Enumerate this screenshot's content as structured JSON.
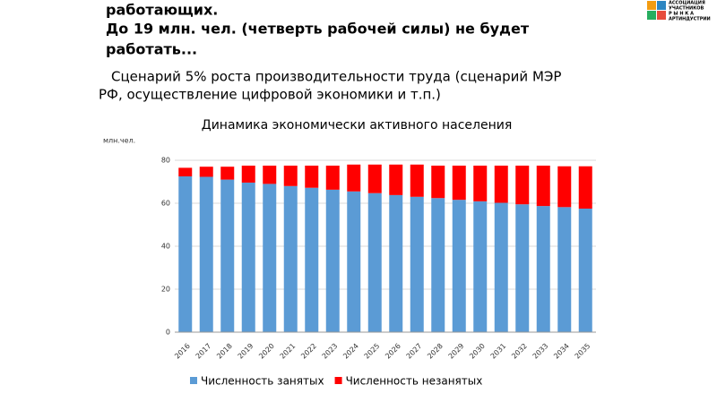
{
  "header": {
    "lines": [
      "работающих.",
      "До 19 млн. чел. (четверть рабочей силы) не будет",
      "работать..."
    ],
    "logo": [
      "АССОЦИАЦИЯ",
      "УЧАСТНИКОВ",
      "Р Ы Н К А",
      "АРТИНДУСТРИИ"
    ]
  },
  "subtitle": [
    "Сценарий 5% роста производительности труда (сценарий МЭР",
    "РФ, осуществление цифровой экономики и т.п.)"
  ],
  "chart_data": {
    "type": "stacked_bar",
    "title": "Динамика экономически активного населения",
    "y_label": "млн.чел.",
    "categories": [
      "2016",
      "2017",
      "2018",
      "2019",
      "2020",
      "2021",
      "2022",
      "2023",
      "2024",
      "2025",
      "2026",
      "2027",
      "2028",
      "2029",
      "2030",
      "2031",
      "2032",
      "2033",
      "2034",
      "2035"
    ],
    "series": [
      {
        "name": "Численность занятых",
        "color": "#5b9bd5",
        "values": [
          72.5,
          72.3,
          71,
          69.6,
          69,
          68,
          67.2,
          66.3,
          65.5,
          64.7,
          63.8,
          63,
          62.4,
          61.6,
          60.9,
          60.2,
          59.5,
          58.7,
          58.2,
          57.5
        ]
      },
      {
        "name": "Численность незанятых",
        "color": "#ff0000",
        "values": [
          4,
          4.7,
          6,
          7.9,
          8.5,
          9.5,
          10.3,
          11.2,
          12.5,
          13.3,
          14.2,
          15,
          15.1,
          15.9,
          16.6,
          17.3,
          18,
          18.8,
          19,
          19.7
        ]
      }
    ],
    "ylim": [
      0,
      80
    ],
    "yticks": [
      0,
      20,
      40,
      60,
      80
    ],
    "grid": true,
    "legend": "bottom"
  }
}
